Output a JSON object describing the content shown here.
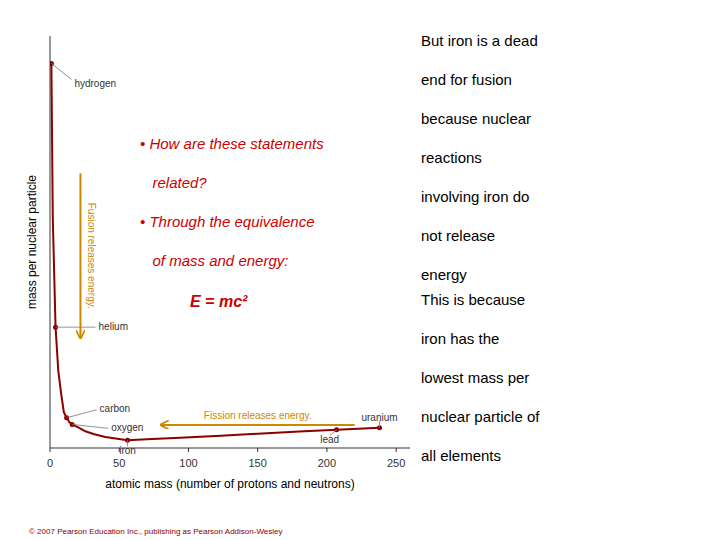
{
  "chart_data": {
    "type": "line",
    "x": [
      1,
      2,
      4,
      6,
      8,
      10,
      12,
      14,
      16,
      20,
      26,
      32,
      40,
      56,
      70,
      90,
      120,
      150,
      180,
      207,
      238
    ],
    "values": [
      1.0,
      0.72,
      0.52,
      0.44,
      0.4,
      0.365,
      0.355,
      0.347,
      0.343,
      0.338,
      0.33,
      0.325,
      0.32,
      0.314,
      0.316,
      0.318,
      0.322,
      0.326,
      0.33,
      0.333,
      0.337
    ],
    "color": "#8b0000",
    "xlabel": "atomic mass (number of protons and neutrons)",
    "ylabel": "mass per nuclear particle",
    "xlim": [
      0,
      260
    ],
    "ylim": [
      0.3,
      1.05
    ],
    "xticks": [
      0,
      50,
      100,
      150,
      200,
      250
    ],
    "tick_labels": "x",
    "grid": false,
    "annotations": [
      {
        "text": "hydrogen",
        "x": 1,
        "y": 1.0
      },
      {
        "text": "helium",
        "x": 4,
        "y": 0.52
      },
      {
        "text": "carbon",
        "x": 12,
        "y": 0.355
      },
      {
        "text": "oxygen",
        "x": 16,
        "y": 0.343
      },
      {
        "text": "iron",
        "x": 56,
        "y": 0.314
      },
      {
        "text": "lead",
        "x": 207,
        "y": 0.333
      },
      {
        "text": "uranium",
        "x": 238,
        "y": 0.337
      }
    ],
    "arrows": [
      {
        "text": "Fusion releases energy.",
        "x": [
          22,
          22
        ],
        "y": [
          0.8,
          0.5
        ],
        "color": "#cc8800"
      },
      {
        "text": "Fission releases energy.",
        "x": [
          220,
          80
        ],
        "y": [
          0.342,
          0.342
        ],
        "color": "#cc8800"
      }
    ],
    "notes": [
      {
        "lines": [
          "• How are these statements",
          "   related?",
          "• Through the equivalence",
          "   of mass and energy:"
        ],
        "color": "#cc0000"
      },
      {
        "lines": [
          "E = mc²"
        ],
        "color": "#cc0000"
      },
      {
        "lines": [
          "But iron is a dead",
          "end for fusion",
          "because nuclear",
          "reactions",
          "involving iron do",
          "not release",
          "energy"
        ]
      },
      {
        "lines": [
          "This is because",
          "iron has the",
          "lowest mass per",
          "nuclear particle of",
          "all elements"
        ]
      }
    ],
    "footnote": "© 2007 Pearson Education Inc., publishing as Pearson Addison-Wesley"
  }
}
